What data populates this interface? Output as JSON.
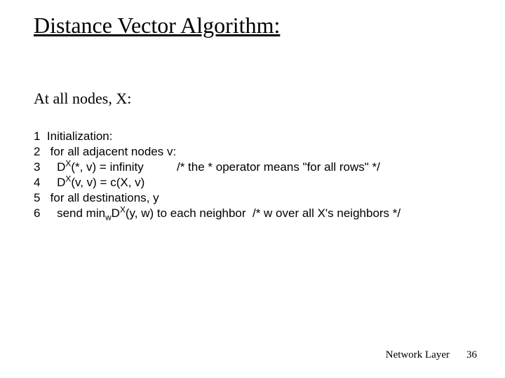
{
  "title": "Distance Vector Algorithm:",
  "subtitle": "At all nodes, X:",
  "code": {
    "l1": {
      "num": "1",
      "text": "Initialization:"
    },
    "l2": {
      "num": "2",
      "text": "for all adjacent nodes v:"
    },
    "l3": {
      "num": "3",
      "lead": "D",
      "sup": "X",
      "args": "(*, v) = infinity",
      "comment": "/* the * operator means \"for all rows\" */"
    },
    "l4": {
      "num": "4",
      "lead": "D",
      "sup": "X",
      "args": "(v, v) = c(X, v)"
    },
    "l5": {
      "num": "5",
      "text": "for all destinations, y"
    },
    "l6": {
      "num": "6",
      "lead": "send min",
      "sub": "w",
      "mid": "D",
      "sup": "X",
      "tail": "(y, w) to each neighbor  /* w over all X's neighbors */"
    }
  },
  "footer": {
    "section": "Network Layer",
    "page": "36"
  },
  "style": {
    "title_fontsize": 32,
    "subtitle_fontsize": 22,
    "code_fontsize": 17,
    "footer_fontsize": 15,
    "title_font": "Comic Sans MS",
    "code_font": "Arial",
    "text_color": "#000000",
    "background_color": "#ffffff"
  }
}
